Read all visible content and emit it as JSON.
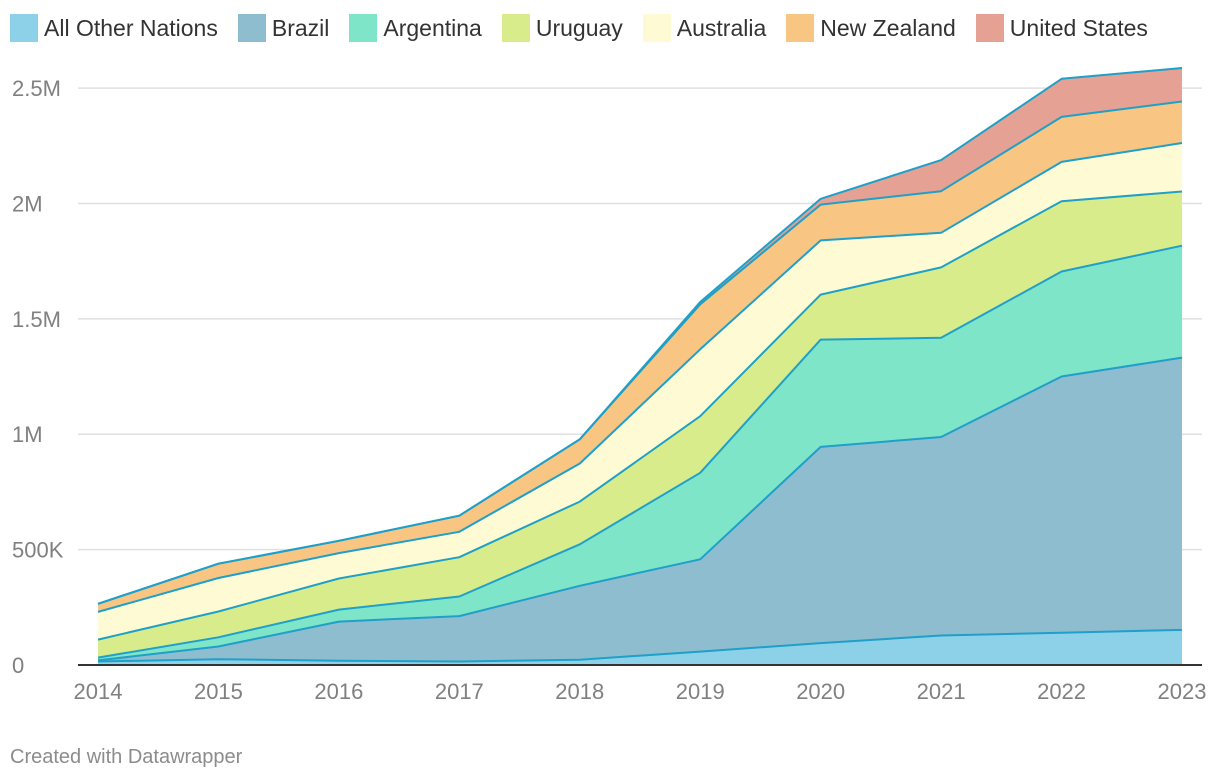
{
  "chart_data": {
    "type": "area",
    "stacked": true,
    "title": "",
    "xlabel": "",
    "ylabel": "",
    "x": [
      2014,
      2015,
      2016,
      2017,
      2018,
      2019,
      2020,
      2021,
      2022,
      2023
    ],
    "ylim": [
      0,
      2600000
    ],
    "yticks": [
      0,
      500000,
      1000000,
      1500000,
      2000000,
      2500000
    ],
    "ytick_labels": [
      "0",
      "500K",
      "1M",
      "1.5M",
      "2M",
      "2.5M"
    ],
    "xtick_labels": [
      "2014",
      "2015",
      "2016",
      "2017",
      "2018",
      "2019",
      "2020",
      "2021",
      "2022",
      "2023"
    ],
    "grid": true,
    "legend_position": "top",
    "series": [
      {
        "name": "All Other Nations",
        "color": "#8dd1e8",
        "values": [
          15000,
          25000,
          18000,
          15000,
          23000,
          58000,
          95000,
          128000,
          140000,
          152000
        ]
      },
      {
        "name": "Brazil",
        "color": "#8fbdd0",
        "values": [
          5000,
          55000,
          170000,
          197000,
          320000,
          400000,
          850000,
          860000,
          1110000,
          1180000
        ]
      },
      {
        "name": "Argentina",
        "color": "#7ee5c9",
        "values": [
          12000,
          40000,
          52000,
          85000,
          180000,
          375000,
          465000,
          430000,
          455000,
          485000
        ]
      },
      {
        "name": "Uruguay",
        "color": "#d9ec8b",
        "values": [
          78000,
          112000,
          135000,
          170000,
          185000,
          245000,
          195000,
          305000,
          305000,
          235000
        ]
      },
      {
        "name": "Australia",
        "color": "#fefbd4",
        "values": [
          120000,
          145000,
          110000,
          110000,
          165000,
          290000,
          235000,
          150000,
          170000,
          210000
        ]
      },
      {
        "name": "New Zealand",
        "color": "#f9c582",
        "values": [
          35000,
          62000,
          53000,
          70000,
          105000,
          195000,
          155000,
          180000,
          195000,
          180000
        ]
      },
      {
        "name": "United States",
        "color": "#e4a194",
        "values": [
          0,
          0,
          0,
          0,
          0,
          10000,
          25000,
          135000,
          165000,
          145000
        ]
      }
    ]
  },
  "footer": {
    "credit": "Created with Datawrapper"
  },
  "colors": {
    "stroke": "#1ea0c8",
    "grid": "#e0e0e0",
    "axis": "#333333",
    "tick_text": "#808080"
  }
}
